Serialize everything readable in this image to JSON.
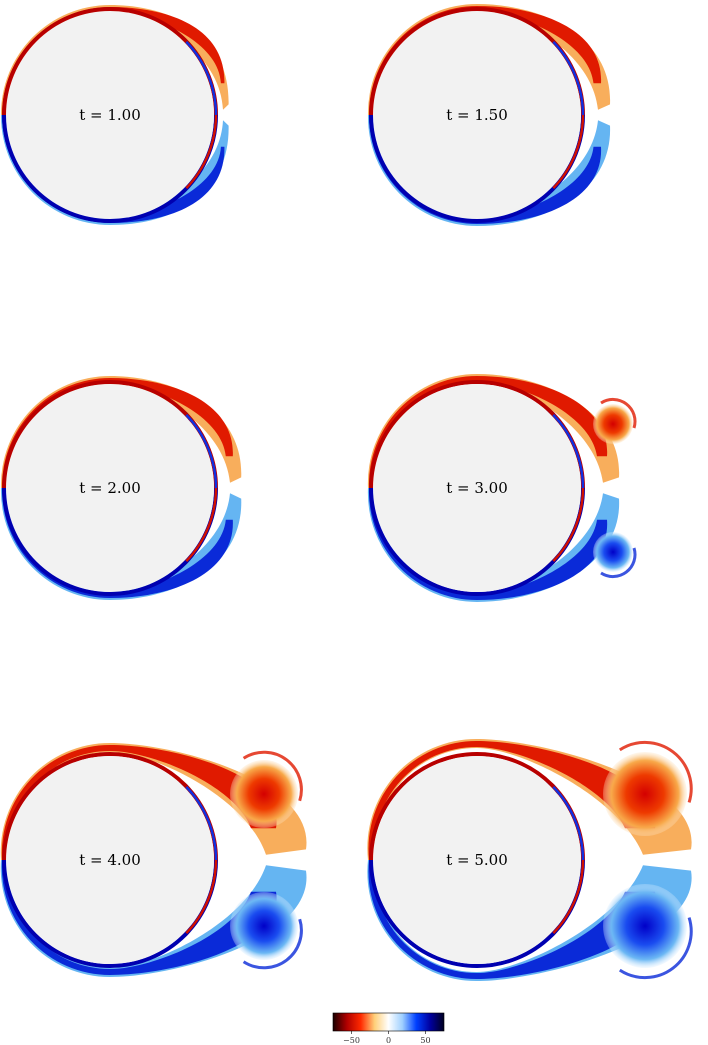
{
  "panels": [
    {
      "label": "t = 1.00",
      "stage": 0
    },
    {
      "label": "t = 1.50",
      "stage": 1
    },
    {
      "label": "t = 2.00",
      "stage": 2
    },
    {
      "label": "t = 3.00",
      "stage": 3
    },
    {
      "label": "t = 4.00",
      "stage": 4
    },
    {
      "label": "t = 5.00",
      "stage": 5
    }
  ],
  "colorbar": {
    "ticks": [
      "−50",
      "0",
      "50"
    ],
    "tick_values": [
      -50,
      0,
      50
    ],
    "range": [
      -75,
      75
    ],
    "stops": [
      "#1a0000",
      "#b00000",
      "#ff2a00",
      "#ffd07a",
      "#ffffff",
      "#9fd0ff",
      "#0040ff",
      "#0000a0",
      "#000020"
    ]
  },
  "colors": {
    "negative": "#e01a00",
    "negative_light": "#f7a040",
    "positive": "#0a2ad8",
    "positive_light": "#4aa8f0",
    "body": "#f2f2f2"
  }
}
